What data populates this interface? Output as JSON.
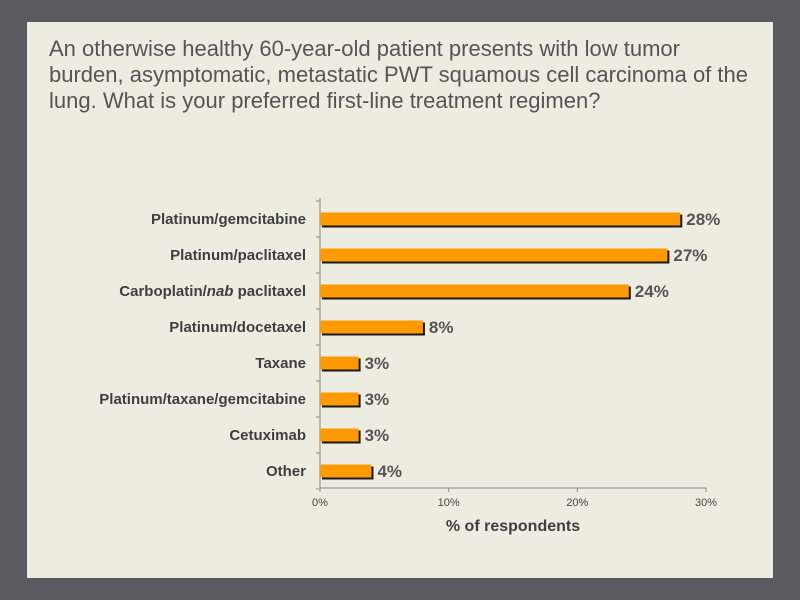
{
  "slide": {
    "question": "An otherwise healthy 60-year-old patient presents with low tumor burden, asymptomatic, metastatic PWT squamous cell carcinoma of the lung. What is your preferred first-line treatment regimen?"
  },
  "colors": {
    "background": "#5b5b5f",
    "slide": "#ecece0",
    "bar": "#ff9900",
    "bar_shadow": "#1a1a1a",
    "text": "#555555"
  },
  "chart_data": {
    "type": "bar",
    "orientation": "horizontal",
    "categories": [
      "Platinum/gemcitabine",
      "Platinum/paclitaxel",
      "Carboplatin/nab paclitaxel",
      "Platinum/docetaxel",
      "Taxane",
      "Platinum/taxane/gemcitabine",
      "Cetuximab",
      "Other"
    ],
    "category_parts": [
      [
        {
          "text": "Platinum/gemcitabine",
          "italic": false
        }
      ],
      [
        {
          "text": "Platinum/paclitaxel",
          "italic": false
        }
      ],
      [
        {
          "text": "Carboplatin/",
          "italic": false
        },
        {
          "text": "nab",
          "italic": true
        },
        {
          "text": " paclitaxel",
          "italic": false
        }
      ],
      [
        {
          "text": "Platinum/docetaxel",
          "italic": false
        }
      ],
      [
        {
          "text": "Taxane",
          "italic": false
        }
      ],
      [
        {
          "text": "Platinum/taxane/gemcitabine",
          "italic": false
        }
      ],
      [
        {
          "text": "Cetuximab",
          "italic": false
        }
      ],
      [
        {
          "text": "Other",
          "italic": false
        }
      ]
    ],
    "values": [
      28,
      27,
      24,
      8,
      3,
      3,
      3,
      4
    ],
    "value_labels": [
      "28%",
      "27%",
      "24%",
      "8%",
      "3%",
      "3%",
      "3%",
      "4%"
    ],
    "xlabel": "% of respondents",
    "ylabel": "",
    "xlim": [
      0,
      30
    ],
    "ticks": [
      0,
      10,
      20,
      30
    ],
    "tick_labels": [
      "0%",
      "10%",
      "20%",
      "30%"
    ],
    "grid": false,
    "legend": "none"
  }
}
